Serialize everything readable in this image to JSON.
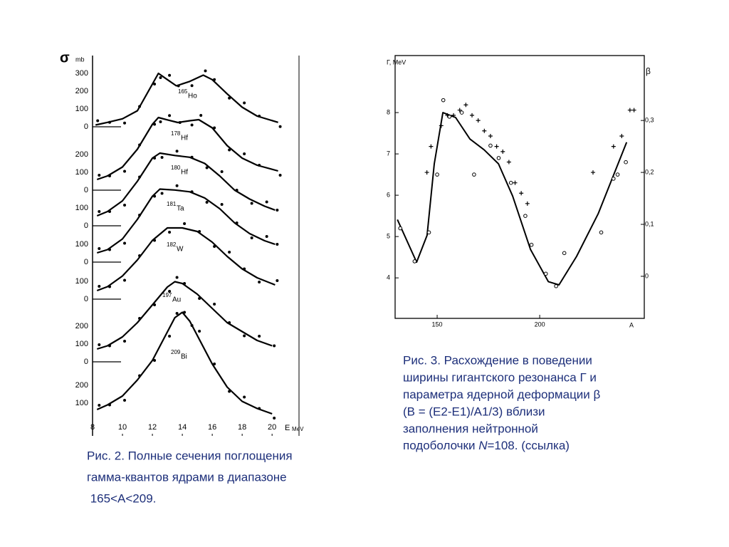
{
  "chart_data": [
    {
      "type": "ridgeline",
      "y_symbol": "σ",
      "y_unit": "mb",
      "x_symbol": "E",
      "x_unit": "MeV",
      "xlim": [
        8,
        21.8
      ],
      "xticks": [
        8,
        10,
        12,
        14,
        16,
        18,
        20
      ],
      "series": [
        {
          "mass": "165",
          "symbol": "Ho",
          "yticks": [
            0,
            100,
            200,
            300
          ],
          "x": [
            8.2,
            9,
            10,
            11,
            12,
            12.4,
            13,
            13.6,
            14.5,
            15.4,
            16,
            17,
            18,
            19,
            20.4
          ],
          "values": [
            10,
            25,
            45,
            90,
            240,
            300,
            265,
            230,
            255,
            290,
            265,
            185,
            110,
            60,
            25
          ]
        },
        {
          "mass": "178",
          "symbol": "Hf",
          "yticks": [
            0,
            100,
            200
          ],
          "x": [
            8.3,
            9,
            10,
            11,
            12,
            12.4,
            13,
            13.7,
            14.5,
            15.1,
            16,
            17,
            18,
            19,
            20.4
          ],
          "values": [
            60,
            80,
            130,
            230,
            370,
            408,
            395,
            380,
            390,
            396,
            350,
            250,
            180,
            140,
            108
          ]
        },
        {
          "mass": "180",
          "symbol": "Hf",
          "yticks": [
            0,
            100
          ],
          "x": [
            8.3,
            9,
            10,
            11,
            12,
            12.5,
            13.5,
            14.5,
            15.5,
            16.5,
            17.5,
            18.5,
            19.5,
            20.2
          ],
          "values": [
            56,
            80,
            140,
            250,
            380,
            408,
            395,
            385,
            350,
            280,
            200,
            150,
            110,
            88
          ]
        },
        {
          "mass": "181",
          "symbol": "Ta",
          "yticks": [
            0,
            100
          ],
          "x": [
            8.3,
            9,
            10,
            11,
            12,
            12.5,
            13.5,
            14.5,
            15.5,
            16.5,
            17.5,
            18.5,
            19.5,
            20.2
          ],
          "values": [
            52,
            70,
            130,
            240,
            370,
            410,
            405,
            395,
            360,
            300,
            220,
            160,
            120,
            100
          ]
        },
        {
          "mass": "182",
          "symbol": "W",
          "yticks": [
            0,
            100
          ],
          "x": [
            8.3,
            9,
            10,
            11,
            12,
            13,
            14,
            15,
            16,
            17,
            18,
            19,
            20.2
          ],
          "values": [
            48,
            70,
            130,
            220,
            330,
            400,
            400,
            380,
            320,
            240,
            170,
            120,
            80
          ]
        },
        {
          "mass": "197",
          "symbol": "Au",
          "yticks": [
            0,
            100,
            200
          ],
          "x": [
            8.3,
            9,
            10,
            11,
            12,
            13,
            13.5,
            14,
            15,
            16,
            17,
            18,
            19,
            20
          ],
          "values": [
            72,
            90,
            140,
            220,
            320,
            420,
            450,
            440,
            380,
            300,
            220,
            170,
            120,
            90
          ]
        },
        {
          "mass": "209",
          "symbol": "Bi",
          "yticks": [
            100,
            200
          ],
          "x": [
            8.3,
            9,
            10,
            11,
            12,
            13,
            13.5,
            14,
            14.5,
            15,
            16,
            17,
            18,
            19,
            20
          ],
          "values": [
            64,
            90,
            140,
            230,
            340,
            500,
            580,
            610,
            560,
            480,
            320,
            190,
            110,
            70,
            40
          ]
        }
      ]
    },
    {
      "type": "line",
      "y_label": "Г, MeV",
      "y2_label": "β",
      "x_label": "A",
      "xlim": [
        129.5,
        251
      ],
      "xticks": [
        150,
        200
      ],
      "ylim": [
        3.02,
        9.38
      ],
      "yticks": [
        4,
        5,
        6,
        7,
        8
      ],
      "y2lim": [
        -0.081,
        0.425
      ],
      "y2ticks": [
        0,
        {
          "value": 0.1,
          "label": "0,1"
        },
        {
          "value": 0.2,
          "label": "0,2"
        },
        {
          "value": 0.3,
          "label": "0,3"
        }
      ],
      "series": [
        {
          "mark": "line",
          "color": "#000000",
          "x": [
            130.6,
            140,
            145.1,
            148.6,
            152.8,
            159,
            166,
            172.9,
            179.9,
            186.8,
            195.5,
            204.2,
            209.4,
            218,
            228.5,
            242.4
          ],
          "values": [
            5.41,
            4.38,
            5.03,
            6.76,
            8.0,
            7.88,
            7.36,
            7.1,
            6.76,
            5.98,
            4.69,
            3.91,
            3.83,
            4.52,
            5.55,
            7.28
          ]
        },
        {
          "mark": "circle",
          "color": "#000000",
          "x": [
            132,
            139,
            146,
            150,
            153,
            156,
            162,
            168,
            176,
            180,
            186,
            193,
            196,
            203,
            208,
            212,
            230,
            236,
            238,
            242
          ],
          "values": [
            5.2,
            4.4,
            5.1,
            6.5,
            8.3,
            7.9,
            8.0,
            6.5,
            7.2,
            6.9,
            6.3,
            5.5,
            4.8,
            4.1,
            3.8,
            4.6,
            5.1,
            6.4,
            6.5,
            6.8
          ]
        },
        {
          "mark": "cross",
          "color": "#000000",
          "axis": "y2",
          "x": [
            145,
            147,
            152,
            155,
            158,
            161,
            164,
            167,
            170,
            173,
            176,
            179,
            182,
            185,
            188,
            191,
            194,
            226,
            236,
            240,
            244,
            246
          ],
          "values": [
            0.2,
            0.25,
            0.29,
            0.31,
            0.31,
            0.32,
            0.33,
            0.31,
            0.3,
            0.28,
            0.27,
            0.25,
            0.24,
            0.22,
            0.18,
            0.16,
            0.14,
            0.2,
            0.25,
            0.27,
            0.32,
            0.32
          ]
        }
      ]
    }
  ],
  "captions": {
    "fig2": [
      "Рис. 2. Полные сечения поглощения",
      "гамма-квантов ядрами в диапазоне",
      " 165<A<209."
    ],
    "fig3": [
      "Рис. 3. Расхождение в поведении",
      "ширины гигантского резонанса Г и",
      "параметра ядерной деформации β",
      "(B = (E2-E1)/A1/3) вблизи",
      "заполнения нейтронной"
    ],
    "fig3_last": [
      "подоболочки ",
      "N",
      "=108. (ссылка)"
    ]
  }
}
